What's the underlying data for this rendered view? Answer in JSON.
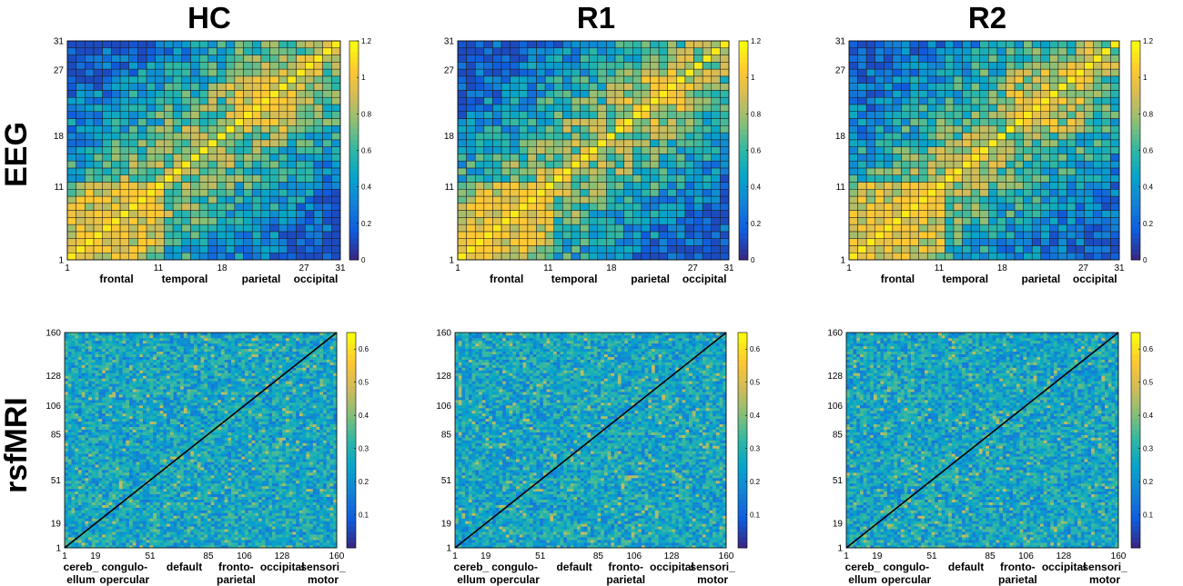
{
  "columns": [
    "HC",
    "R1",
    "R2"
  ],
  "rows": [
    "EEG",
    "rsfMRI"
  ],
  "colors": {
    "parula": [
      "#352a87",
      "#0f5cdd",
      "#1481d6",
      "#06a4ca",
      "#2eb7a4",
      "#87bf77",
      "#d1bb59",
      "#fec832",
      "#f9fb0e"
    ],
    "grid_line": "#1a1a1a",
    "diagonal": "#000000"
  },
  "chart_data": [
    {
      "type": "heatmap",
      "id": "eeg-hc",
      "group": "HC",
      "modality": "EEG",
      "size": 31,
      "clim": [
        0,
        1.2
      ],
      "seed": 11,
      "xticks": [
        "1",
        "11",
        "18",
        "27",
        "31"
      ],
      "yticks": [
        "1",
        "11",
        "18",
        "27",
        "31"
      ],
      "tick_values": [
        1,
        11,
        18,
        27,
        31
      ],
      "colorbar_ticks": [
        "0",
        "0.2",
        "0.4",
        "0.6",
        "0.8",
        "1",
        "1.2"
      ],
      "colorbar_values": [
        0,
        0.2,
        0.4,
        0.6,
        0.8,
        1,
        1.2
      ],
      "regions": [
        {
          "line1": "frontal",
          "line2": ""
        },
        {
          "line1": "temporal",
          "line2": ""
        },
        {
          "line1": "parietal",
          "line2": ""
        },
        {
          "line1": "occipital",
          "line2": ""
        }
      ]
    },
    {
      "type": "heatmap",
      "id": "eeg-r1",
      "group": "R1",
      "modality": "EEG",
      "size": 31,
      "clim": [
        0,
        1.2
      ],
      "seed": 23,
      "xticks": [
        "1",
        "11",
        "18",
        "27",
        "31"
      ],
      "yticks": [
        "1",
        "11",
        "18",
        "27",
        "31"
      ],
      "tick_values": [
        1,
        11,
        18,
        27,
        31
      ],
      "colorbar_ticks": [
        "0",
        "0.2",
        "0.4",
        "0.6",
        "0.8",
        "1",
        "1.2"
      ],
      "colorbar_values": [
        0,
        0.2,
        0.4,
        0.6,
        0.8,
        1,
        1.2
      ],
      "regions": [
        {
          "line1": "frontal",
          "line2": ""
        },
        {
          "line1": "temporal",
          "line2": ""
        },
        {
          "line1": "parietal",
          "line2": ""
        },
        {
          "line1": "occipital",
          "line2": ""
        }
      ]
    },
    {
      "type": "heatmap",
      "id": "eeg-r2",
      "group": "R2",
      "modality": "EEG",
      "size": 31,
      "clim": [
        0,
        1.2
      ],
      "seed": 37,
      "xticks": [
        "1",
        "11",
        "18",
        "27",
        "31"
      ],
      "yticks": [
        "1",
        "11",
        "18",
        "27",
        "31"
      ],
      "tick_values": [
        1,
        11,
        18,
        27,
        31
      ],
      "colorbar_ticks": [
        "0",
        "0.2",
        "0.4",
        "0.6",
        "0.8",
        "1",
        "1.2"
      ],
      "colorbar_values": [
        0,
        0.2,
        0.4,
        0.6,
        0.8,
        1,
        1.2
      ],
      "regions": [
        {
          "line1": "frontal",
          "line2": ""
        },
        {
          "line1": "temporal",
          "line2": ""
        },
        {
          "line1": "parietal",
          "line2": ""
        },
        {
          "line1": "occipital",
          "line2": ""
        }
      ]
    },
    {
      "type": "heatmap",
      "id": "mri-hc",
      "group": "HC",
      "modality": "rsfMRI",
      "size": 160,
      "clim": [
        0,
        0.65
      ],
      "seed": 51,
      "xticks": [
        "1",
        "19",
        "51",
        "85",
        "106",
        "128",
        "160"
      ],
      "yticks": [
        "1",
        "19",
        "51",
        "85",
        "106",
        "128",
        "160"
      ],
      "tick_values": [
        1,
        19,
        51,
        85,
        106,
        128,
        160
      ],
      "colorbar_ticks": [
        "0.1",
        "0.2",
        "0.3",
        "0.4",
        "0.5",
        "0.6"
      ],
      "colorbar_values": [
        0.1,
        0.2,
        0.3,
        0.4,
        0.5,
        0.6
      ],
      "regions": [
        {
          "line1": "cereb_",
          "line2": "ellum"
        },
        {
          "line1": "congulo-",
          "line2": "opercular"
        },
        {
          "line1": "default",
          "line2": ""
        },
        {
          "line1": "fronto-",
          "line2": "parietal"
        },
        {
          "line1": "occipital",
          "line2": ""
        },
        {
          "line1": "sensori_",
          "line2": "motor"
        }
      ]
    },
    {
      "type": "heatmap",
      "id": "mri-r1",
      "group": "R1",
      "modality": "rsfMRI",
      "size": 160,
      "clim": [
        0,
        0.65
      ],
      "seed": 63,
      "xticks": [
        "1",
        "19",
        "51",
        "85",
        "106",
        "128",
        "160"
      ],
      "yticks": [
        "1",
        "19",
        "51",
        "85",
        "106",
        "128",
        "160"
      ],
      "tick_values": [
        1,
        19,
        51,
        85,
        106,
        128,
        160
      ],
      "colorbar_ticks": [
        "0.1",
        "0.2",
        "0.3",
        "0.4",
        "0.5",
        "0.6"
      ],
      "colorbar_values": [
        0.1,
        0.2,
        0.3,
        0.4,
        0.5,
        0.6
      ],
      "regions": [
        {
          "line1": "cereb_",
          "line2": "ellum"
        },
        {
          "line1": "congulo-",
          "line2": "opercular"
        },
        {
          "line1": "default",
          "line2": ""
        },
        {
          "line1": "fronto-",
          "line2": "parietal"
        },
        {
          "line1": "occipital",
          "line2": ""
        },
        {
          "line1": "sensori_",
          "line2": "motor"
        }
      ]
    },
    {
      "type": "heatmap",
      "id": "mri-r2",
      "group": "R2",
      "modality": "rsfMRI",
      "size": 160,
      "clim": [
        0,
        0.65
      ],
      "seed": 79,
      "xticks": [
        "1",
        "19",
        "51",
        "85",
        "106",
        "128",
        "160"
      ],
      "yticks": [
        "1",
        "19",
        "51",
        "85",
        "106",
        "128",
        "160"
      ],
      "tick_values": [
        1,
        19,
        51,
        85,
        106,
        128,
        160
      ],
      "colorbar_ticks": [
        "0.1",
        "0.2",
        "0.3",
        "0.4",
        "0.5",
        "0.6"
      ],
      "colorbar_values": [
        0.1,
        0.2,
        0.3,
        0.4,
        0.5,
        0.6
      ],
      "regions": [
        {
          "line1": "cereb_",
          "line2": "ellum"
        },
        {
          "line1": "congulo-",
          "line2": "opercular"
        },
        {
          "line1": "default",
          "line2": ""
        },
        {
          "line1": "fronto-",
          "line2": "parietal"
        },
        {
          "line1": "occipital",
          "line2": ""
        },
        {
          "line1": "sensori_",
          "line2": "motor"
        }
      ]
    }
  ]
}
